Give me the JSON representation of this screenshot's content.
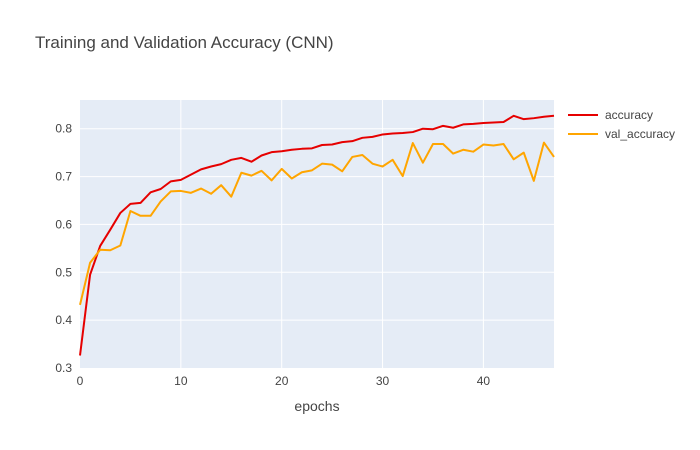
{
  "chart_data": {
    "type": "line",
    "title": "Training and Validation Accuracy (CNN)",
    "xlabel": "epochs",
    "ylabel": "",
    "xlim": [
      0,
      47
    ],
    "ylim": [
      0.3,
      0.86
    ],
    "x_ticks": [
      0,
      10,
      20,
      30,
      40
    ],
    "y_ticks": [
      0.3,
      0.4,
      0.5,
      0.6,
      0.7,
      0.8
    ],
    "grid": true,
    "legend_position": "top-right",
    "x": [
      0,
      1,
      2,
      3,
      4,
      5,
      6,
      7,
      8,
      9,
      10,
      11,
      12,
      13,
      14,
      15,
      16,
      17,
      18,
      19,
      20,
      21,
      22,
      23,
      24,
      25,
      26,
      27,
      28,
      29,
      30,
      31,
      32,
      33,
      34,
      35,
      36,
      37,
      38,
      39,
      40,
      41,
      42,
      43,
      44,
      45,
      46,
      47
    ],
    "series": [
      {
        "name": "accuracy",
        "color": "#e60000",
        "values": [
          0.326,
          0.495,
          0.555,
          0.589,
          0.624,
          0.643,
          0.645,
          0.667,
          0.674,
          0.69,
          0.693,
          0.704,
          0.715,
          0.721,
          0.726,
          0.735,
          0.739,
          0.731,
          0.744,
          0.751,
          0.753,
          0.756,
          0.758,
          0.759,
          0.766,
          0.767,
          0.772,
          0.774,
          0.781,
          0.783,
          0.788,
          0.79,
          0.791,
          0.793,
          0.8,
          0.799,
          0.806,
          0.802,
          0.809,
          0.81,
          0.812,
          0.813,
          0.814,
          0.827,
          0.82,
          0.822,
          0.825,
          0.827
        ]
      },
      {
        "name": "val_accuracy",
        "color": "#ffa500",
        "values": [
          0.432,
          0.52,
          0.547,
          0.546,
          0.556,
          0.628,
          0.618,
          0.618,
          0.648,
          0.669,
          0.67,
          0.666,
          0.675,
          0.664,
          0.682,
          0.658,
          0.708,
          0.702,
          0.712,
          0.692,
          0.716,
          0.696,
          0.709,
          0.713,
          0.727,
          0.725,
          0.711,
          0.741,
          0.745,
          0.727,
          0.721,
          0.735,
          0.701,
          0.77,
          0.729,
          0.768,
          0.768,
          0.748,
          0.756,
          0.752,
          0.767,
          0.765,
          0.768,
          0.736,
          0.75,
          0.691,
          0.771,
          0.741
        ]
      }
    ]
  }
}
